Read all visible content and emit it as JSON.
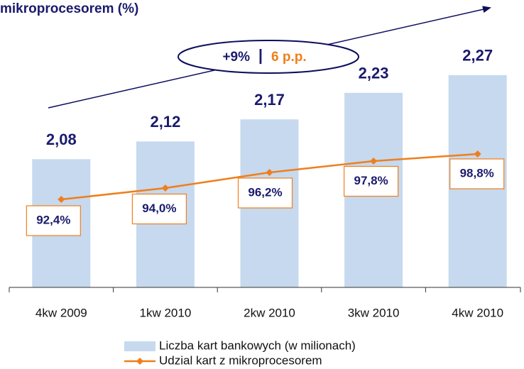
{
  "chart_data": {
    "type": "bar",
    "title": "mikroprocesorem (%)",
    "annotations": [
      "+9%",
      "|",
      "6 p.p."
    ],
    "categories": [
      "4kw 2009",
      "1kw 2010",
      "2kw 2010",
      "3kw 2010",
      "4kw 2010"
    ],
    "series": [
      {
        "name": "Liczba kart bankowych (w milionach)",
        "type": "bar",
        "color": "#c6d9ee",
        "values": [
          2.08,
          2.12,
          2.17,
          2.23,
          2.27
        ],
        "value_labels": [
          "2,08",
          "2,12",
          "2,17",
          "2,23",
          "2,27"
        ]
      },
      {
        "name": "Udzial kart z mikroprocesorem",
        "type": "line",
        "axis": "y2",
        "color": "#f07e1a",
        "values": [
          92.4,
          94.0,
          96.2,
          97.8,
          98.8
        ],
        "value_labels": [
          "92,4%",
          "94,0%",
          "96,2%",
          "97,8%",
          "98,8%"
        ]
      }
    ],
    "ylim": [
      1.79,
      2.44
    ],
    "y2lim": [
      80,
      120.5
    ]
  }
}
